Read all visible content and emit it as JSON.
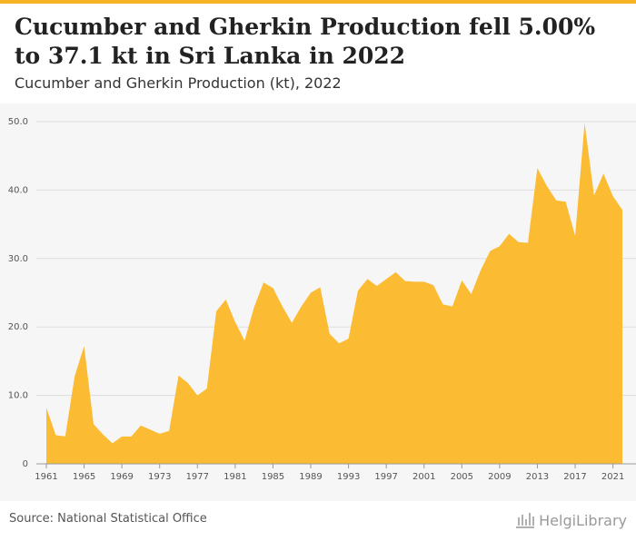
{
  "header": {
    "title": "Cucumber and Gherkin Production fell 5.00% to 37.1 kt in Sri Lanka in 2022",
    "subtitle": "Cucumber and Gherkin Production (kt), 2022"
  },
  "footer": {
    "source": "Source: National Statistical Office",
    "logo_text": "HelgiLibrary"
  },
  "colors": {
    "accent": "#f5b324",
    "area_fill": "#fbbb33",
    "chart_bg": "#f6f6f6",
    "grid": "#dddddd"
  },
  "chart_data": {
    "type": "area",
    "title": "Cucumber and Gherkin Production (kt), 2022",
    "xlabel": "",
    "ylabel": "",
    "ylim": [
      0,
      50
    ],
    "yticks": [
      "0",
      "10.0",
      "20.0",
      "30.0",
      "40.0",
      "50.0"
    ],
    "xticks": [
      "1961",
      "1965",
      "1969",
      "1973",
      "1977",
      "1981",
      "1985",
      "1989",
      "1993",
      "1997",
      "2001",
      "2005",
      "2009",
      "2013",
      "2017",
      "2021"
    ],
    "grid": true,
    "x": [
      1961,
      1962,
      1963,
      1964,
      1965,
      1966,
      1967,
      1968,
      1969,
      1970,
      1971,
      1972,
      1973,
      1974,
      1975,
      1976,
      1977,
      1978,
      1979,
      1980,
      1981,
      1982,
      1983,
      1984,
      1985,
      1986,
      1987,
      1988,
      1989,
      1990,
      1991,
      1992,
      1993,
      1994,
      1995,
      1996,
      1997,
      1998,
      1999,
      2000,
      2001,
      2002,
      2003,
      2004,
      2005,
      2006,
      2007,
      2008,
      2009,
      2010,
      2011,
      2012,
      2013,
      2014,
      2015,
      2016,
      2017,
      2018,
      2019,
      2020,
      2021,
      2022
    ],
    "values": [
      8.2,
      4.2,
      4.0,
      12.8,
      17.2,
      5.8,
      4.3,
      3.0,
      4.0,
      4.0,
      5.6,
      5.0,
      4.4,
      4.8,
      12.9,
      11.8,
      10.0,
      11.0,
      22.3,
      24.0,
      20.7,
      18.0,
      22.9,
      26.5,
      25.7,
      23.0,
      20.6,
      23.0,
      25.0,
      25.8,
      19.0,
      17.6,
      18.3,
      25.3,
      27.0,
      26.0,
      27.0,
      28.0,
      26.7,
      26.6,
      26.6,
      26.1,
      23.3,
      23.0,
      26.8,
      24.8,
      28.3,
      31.1,
      31.8,
      33.6,
      32.4,
      32.3,
      43.2,
      40.6,
      38.5,
      38.3,
      33.3,
      49.8,
      39.2,
      42.4,
      39.1,
      37.1
    ]
  }
}
